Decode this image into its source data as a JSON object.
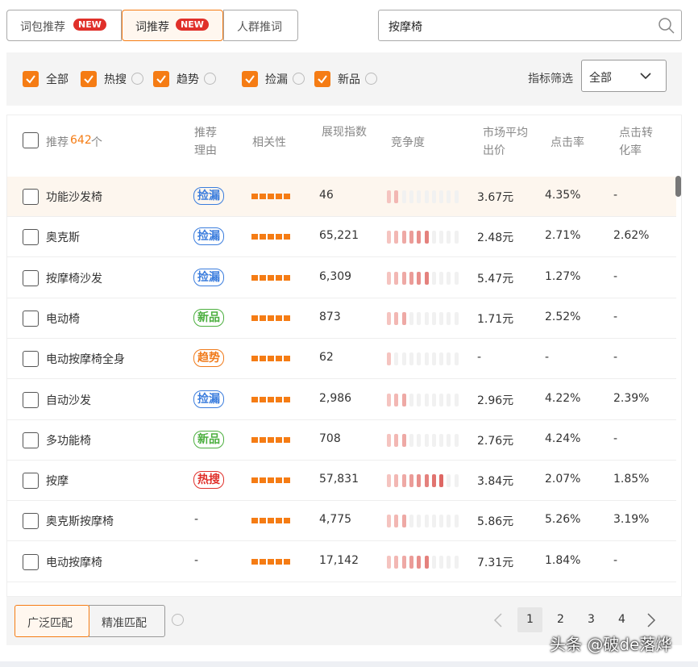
{
  "tabs": [
    {
      "label": "词包推荐",
      "badge": "NEW"
    },
    {
      "label": "词推荐",
      "badge": "NEW"
    },
    {
      "label": "人群推词"
    }
  ],
  "search": "按摩椅",
  "filters": [
    "全部",
    "热搜",
    "趋势",
    "捡漏",
    "新品"
  ],
  "filter_label": "指标筛选",
  "filter_select": "全部",
  "table": {
    "select_prefix": "推荐",
    "count": "642",
    "select_suffix": "个",
    "columns": [
      "推荐理由",
      "相关性",
      "展现指数",
      "竞争度",
      "市场平均出价",
      "点击率",
      "点击转化率"
    ],
    "rows": [
      {
        "keyword": "功能沙发椅",
        "reason": "捡漏",
        "reason_color": "#3b7ddd",
        "relevance": 5,
        "impressions": "46",
        "competition": 2,
        "bid": "3.67元",
        "ctr": "4.35%",
        "cvr": "-"
      },
      {
        "keyword": "奥克斯",
        "reason": "捡漏",
        "reason_color": "#3b7ddd",
        "relevance": 5,
        "impressions": "65,221",
        "competition": 6,
        "bid": "2.48元",
        "ctr": "2.71%",
        "cvr": "2.62%"
      },
      {
        "keyword": "按摩椅沙发",
        "reason": "捡漏",
        "reason_color": "#3b7ddd",
        "relevance": 5,
        "impressions": "6,309",
        "competition": 6,
        "bid": "5.47元",
        "ctr": "1.27%",
        "cvr": "-"
      },
      {
        "keyword": "电动椅",
        "reason": "新品",
        "reason_color": "#4caf3f",
        "relevance": 5,
        "impressions": "873",
        "competition": 3,
        "bid": "1.71元",
        "ctr": "2.52%",
        "cvr": "-"
      },
      {
        "keyword": "电动按摩椅全身",
        "reason": "趋势",
        "reason_color": "#f07a1a",
        "relevance": 5,
        "impressions": "62",
        "competition": 1,
        "bid": "-",
        "ctr": "-",
        "cvr": "-"
      },
      {
        "keyword": "自动沙发",
        "reason": "捡漏",
        "reason_color": "#3b7ddd",
        "relevance": 5,
        "impressions": "2,986",
        "competition": 3,
        "bid": "2.96元",
        "ctr": "4.22%",
        "cvr": "2.39%"
      },
      {
        "keyword": "多功能椅",
        "reason": "新品",
        "reason_color": "#4caf3f",
        "relevance": 5,
        "impressions": "708",
        "competition": 3,
        "bid": "2.76元",
        "ctr": "4.24%",
        "cvr": "-"
      },
      {
        "keyword": "按摩",
        "reason": "热搜",
        "reason_color": "#e0302a",
        "relevance": 5,
        "impressions": "57,831",
        "competition": 8,
        "bid": "3.84元",
        "ctr": "2.07%",
        "cvr": "1.85%"
      },
      {
        "keyword": "奥克斯按摩椅",
        "reason": "-",
        "relevance": 5,
        "impressions": "4,775",
        "competition": 3,
        "bid": "5.86元",
        "ctr": "5.26%",
        "cvr": "3.19%"
      },
      {
        "keyword": "电动按摩椅",
        "reason": "-",
        "relevance": 5,
        "impressions": "17,142",
        "competition": 6,
        "bid": "7.31元",
        "ctr": "1.84%",
        "cvr": "-"
      }
    ]
  },
  "match": [
    "广泛匹配",
    "精准匹配"
  ],
  "pages": [
    "1",
    "2",
    "3",
    "4"
  ],
  "watermark": "头条 @破de落烨"
}
